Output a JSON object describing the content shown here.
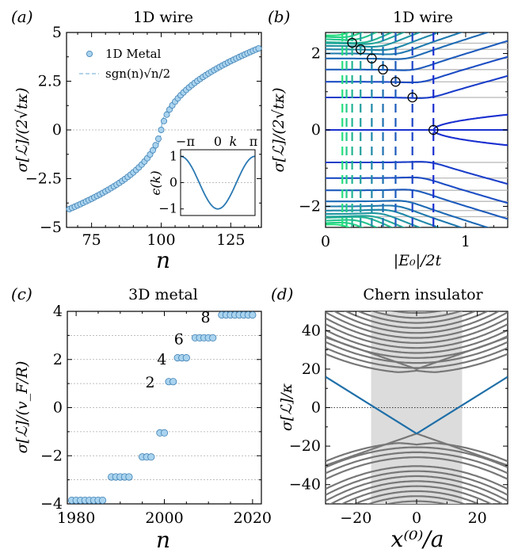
{
  "colors": {
    "marker_fill": "#a9d3ee",
    "marker_edge": "#3d7fb3",
    "dashed_fit": "#63aad6",
    "inset_curve": "#2a79b3",
    "chern_edge": "#1f6fa8",
    "bulk": "#777777",
    "shade": "#dcdcdc",
    "grid": "#aaaaaa",
    "cmap_light": "#26e07f",
    "cmap_dark": "#1a2fd0"
  },
  "panels": [
    {
      "id": "a",
      "label": "(a)",
      "title": "1D wire"
    },
    {
      "id": "b",
      "label": "(b)",
      "title": "1D wire"
    },
    {
      "id": "c",
      "label": "(c)",
      "title": "3D metal"
    },
    {
      "id": "d",
      "label": "(d)",
      "title": "Chern insulator"
    }
  ],
  "chart_data": [
    {
      "panel": "a",
      "type": "scatter",
      "title": "1D wire",
      "xlabel": "n",
      "ylabel": "σ[ℒ]/(2√(tκ))",
      "xlim": [
        66,
        136
      ],
      "ylim": [
        -5,
        5
      ],
      "xticks": [
        "75",
        "100",
        "125"
      ],
      "yticks": [
        "-5",
        "-2.5",
        "0",
        "2.5",
        "5"
      ],
      "legend": [
        "1D Metal",
        "sgn(n)√(n/2)"
      ],
      "legend_loc": "upper left",
      "series": [
        {
          "name": "1D Metal",
          "x_range": [
            67,
            135
          ],
          "center": 100,
          "model": "sgn(n-100)·sqrt(|n-100|/2)"
        }
      ],
      "fit": {
        "name": "sgn(n)√(n/2)",
        "style": "dashed"
      },
      "inset": {
        "type": "line",
        "xlabel": "k",
        "ylabel": "ε(k)",
        "xticks": [
          "−π",
          "0",
          "π"
        ],
        "yticks": [
          "-1",
          "0",
          "1"
        ],
        "function": "-cos(k)"
      }
    },
    {
      "panel": "b",
      "type": "line",
      "title": "1D wire",
      "xlabel": "|E₀|/2t",
      "ylabel": "σ[ℒ]/(2√(tκ))",
      "xlim": [
        0,
        1.3
      ],
      "ylim": [
        -2.55,
        2.55
      ],
      "xticks": [
        "0",
        "1"
      ],
      "yticks": [
        "-2",
        "0",
        "2"
      ],
      "marked_points": [
        [
          0.19,
          2.28
        ],
        [
          0.25,
          2.11
        ],
        [
          0.33,
          1.87
        ],
        [
          0.41,
          1.58
        ],
        [
          0.5,
          1.26
        ],
        [
          0.62,
          0.85
        ],
        [
          0.77,
          0.0
        ]
      ],
      "vertical_lines_x": [
        0.12,
        0.15,
        0.19,
        0.25,
        0.33,
        0.41,
        0.5,
        0.62,
        0.77
      ]
    },
    {
      "panel": "c",
      "type": "scatter",
      "title": "3D metal",
      "xlabel": "n",
      "ylabel": "σ[ℒ]/(v_F/R)",
      "xlim": [
        1978,
        2022
      ],
      "ylim": [
        -4,
        4
      ],
      "xticks": [
        "1980",
        "2000",
        "2020"
      ],
      "yticks": [
        "-4",
        "-2",
        "0",
        "2",
        "4"
      ],
      "annotations": [
        "2",
        "4",
        "6",
        "8"
      ],
      "steps": [
        {
          "x_start": 1979,
          "x_end": 1986,
          "y": -3.85
        },
        {
          "x_start": 1988,
          "x_end": 1992,
          "y": -2.88
        },
        {
          "x_start": 1995,
          "x_end": 1997,
          "y": -2.05
        },
        {
          "x_start": 1999,
          "x_end": 2000,
          "y": -1.05
        },
        {
          "x_start": 2001,
          "x_end": 2002,
          "y": 1.08
        },
        {
          "x_start": 2003,
          "x_end": 2005,
          "y": 2.07
        },
        {
          "x_start": 2007,
          "x_end": 2011,
          "y": 2.9
        },
        {
          "x_start": 2013,
          "x_end": 2020,
          "y": 3.85
        }
      ]
    },
    {
      "panel": "d",
      "type": "line",
      "title": "Chern insulator",
      "xlabel": "x⁽⁰⁾/a",
      "ylabel": "σ[ℒ]/κ",
      "xlim": [
        -30,
        30
      ],
      "ylim": [
        -50,
        50
      ],
      "xticks": [
        "−20",
        "0",
        "20"
      ],
      "yticks": [
        "-40",
        "-20",
        "0",
        "20",
        "40"
      ],
      "shaded_region": [
        -15,
        15
      ],
      "edge_lines": [
        {
          "from": [
            -30,
            16
          ],
          "to": [
            0,
            -13.5
          ]
        },
        {
          "from": [
            0,
            -13.5
          ],
          "to": [
            30,
            16
          ]
        }
      ]
    }
  ]
}
